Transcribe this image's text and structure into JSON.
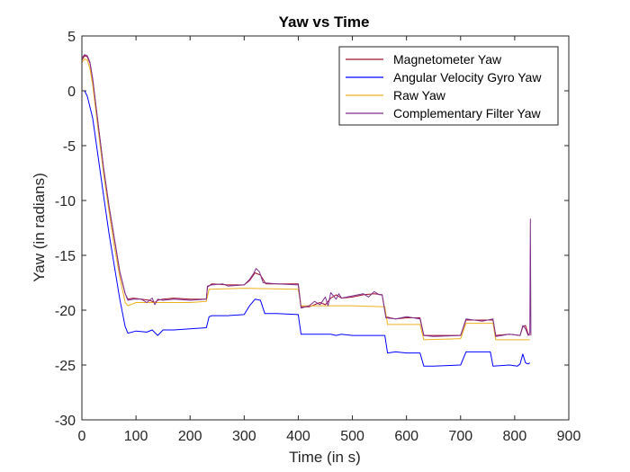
{
  "chart_data": {
    "type": "line",
    "title": "Yaw vs Time",
    "xlabel": "Time (in s)",
    "ylabel": "Yaw (in radians)",
    "xlim": [
      0,
      900
    ],
    "ylim": [
      -30,
      5
    ],
    "xticks": [
      0,
      100,
      200,
      300,
      400,
      500,
      600,
      700,
      800,
      900
    ],
    "yticks": [
      5,
      0,
      -5,
      -10,
      -15,
      -20,
      -25,
      -30
    ],
    "grid": false,
    "legend_position": "top-right",
    "series": [
      {
        "name": "Magnetometer Yaw",
        "color": "#a2142f",
        "points": [
          [
            0,
            2.8
          ],
          [
            5,
            3.2
          ],
          [
            10,
            3.1
          ],
          [
            15,
            2.5
          ],
          [
            20,
            1
          ],
          [
            30,
            -3
          ],
          [
            40,
            -7
          ],
          [
            50,
            -10.5
          ],
          [
            60,
            -13.5
          ],
          [
            70,
            -16.5
          ],
          [
            80,
            -18.5
          ],
          [
            85,
            -19
          ],
          [
            95,
            -18.9
          ],
          [
            110,
            -19
          ],
          [
            125,
            -19.1
          ],
          [
            135,
            -19.3
          ],
          [
            140,
            -19.1
          ],
          [
            150,
            -19
          ],
          [
            170,
            -18.9
          ],
          [
            200,
            -19
          ],
          [
            230,
            -19
          ],
          [
            232,
            -17.9
          ],
          [
            240,
            -17.6
          ],
          [
            270,
            -17.7
          ],
          [
            300,
            -17.7
          ],
          [
            310,
            -17.3
          ],
          [
            320,
            -16.6
          ],
          [
            330,
            -16.8
          ],
          [
            340,
            -17.6
          ],
          [
            360,
            -17.6
          ],
          [
            400,
            -17.6
          ],
          [
            405,
            -19.7
          ],
          [
            420,
            -19.7
          ],
          [
            440,
            -19.3
          ],
          [
            450,
            -19.5
          ],
          [
            460,
            -18.9
          ],
          [
            470,
            -18.6
          ],
          [
            480,
            -18.9
          ],
          [
            500,
            -18.8
          ],
          [
            520,
            -18.6
          ],
          [
            540,
            -18.5
          ],
          [
            555,
            -18.6
          ],
          [
            562,
            -20.6
          ],
          [
            580,
            -20.8
          ],
          [
            600,
            -20.7
          ],
          [
            625,
            -20.7
          ],
          [
            632,
            -22.3
          ],
          [
            650,
            -22.3
          ],
          [
            700,
            -22.3
          ],
          [
            710,
            -20.9
          ],
          [
            740,
            -20.9
          ],
          [
            760,
            -20.9
          ],
          [
            765,
            -22.3
          ],
          [
            790,
            -22.2
          ],
          [
            810,
            -22.3
          ],
          [
            815,
            -21.5
          ],
          [
            820,
            -21.4
          ],
          [
            825,
            -22.2
          ],
          [
            828,
            -22.3
          ]
        ]
      },
      {
        "name": "Angular Velocity Gyro Yaw",
        "color": "#0000ff",
        "points": [
          [
            0,
            0
          ],
          [
            5,
            0
          ],
          [
            10,
            -0.5
          ],
          [
            15,
            -1.5
          ],
          [
            20,
            -2.5
          ],
          [
            30,
            -6
          ],
          [
            40,
            -9.5
          ],
          [
            50,
            -13
          ],
          [
            60,
            -16
          ],
          [
            70,
            -19
          ],
          [
            80,
            -21.5
          ],
          [
            85,
            -22.1
          ],
          [
            100,
            -21.9
          ],
          [
            120,
            -22
          ],
          [
            130,
            -21.8
          ],
          [
            140,
            -22.3
          ],
          [
            150,
            -21.8
          ],
          [
            170,
            -21.8
          ],
          [
            200,
            -21.7
          ],
          [
            230,
            -21.6
          ],
          [
            235,
            -20.6
          ],
          [
            240,
            -20.5
          ],
          [
            270,
            -20.5
          ],
          [
            300,
            -20.4
          ],
          [
            310,
            -19.6
          ],
          [
            320,
            -19
          ],
          [
            330,
            -19.1
          ],
          [
            338,
            -20.3
          ],
          [
            360,
            -20.3
          ],
          [
            400,
            -20.4
          ],
          [
            405,
            -22.2
          ],
          [
            420,
            -22.2
          ],
          [
            460,
            -22.2
          ],
          [
            470,
            -22.3
          ],
          [
            480,
            -22.2
          ],
          [
            500,
            -22.3
          ],
          [
            540,
            -22.3
          ],
          [
            560,
            -22.3
          ],
          [
            565,
            -23.9
          ],
          [
            580,
            -23.8
          ],
          [
            600,
            -23.9
          ],
          [
            625,
            -23.9
          ],
          [
            632,
            -25.1
          ],
          [
            650,
            -25.1
          ],
          [
            700,
            -25
          ],
          [
            710,
            -23.8
          ],
          [
            740,
            -23.8
          ],
          [
            755,
            -23.8
          ],
          [
            760,
            -25.1
          ],
          [
            790,
            -25
          ],
          [
            805,
            -25.1
          ],
          [
            810,
            -24.9
          ],
          [
            815,
            -24
          ],
          [
            820,
            -24.8
          ],
          [
            825,
            -24.9
          ],
          [
            828,
            -24.8
          ]
        ]
      },
      {
        "name": "Raw Yaw",
        "color": "#edb120",
        "points": [
          [
            0,
            2.6
          ],
          [
            5,
            2.9
          ],
          [
            10,
            2.8
          ],
          [
            15,
            2
          ],
          [
            20,
            0.5
          ],
          [
            30,
            -3.5
          ],
          [
            40,
            -7.5
          ],
          [
            50,
            -11
          ],
          [
            60,
            -14.2
          ],
          [
            70,
            -17
          ],
          [
            80,
            -19.3
          ],
          [
            85,
            -19.6
          ],
          [
            100,
            -19.3
          ],
          [
            140,
            -19.3
          ],
          [
            170,
            -19.3
          ],
          [
            200,
            -19.3
          ],
          [
            230,
            -19.2
          ],
          [
            235,
            -18.1
          ],
          [
            300,
            -18
          ],
          [
            400,
            -18.1
          ],
          [
            405,
            -19.6
          ],
          [
            500,
            -19.6
          ],
          [
            560,
            -19.7
          ],
          [
            565,
            -21.3
          ],
          [
            625,
            -21.3
          ],
          [
            632,
            -22.7
          ],
          [
            700,
            -22.6
          ],
          [
            710,
            -21.2
          ],
          [
            760,
            -21.2
          ],
          [
            765,
            -22.7
          ],
          [
            828,
            -22.7
          ]
        ]
      },
      {
        "name": "Complementary Filter Yaw",
        "color": "#7e2f8e",
        "points": [
          [
            0,
            3
          ],
          [
            5,
            3.3
          ],
          [
            10,
            3.2
          ],
          [
            15,
            2.6
          ],
          [
            20,
            1.1
          ],
          [
            30,
            -3
          ],
          [
            40,
            -7
          ],
          [
            50,
            -10.5
          ],
          [
            60,
            -13.5
          ],
          [
            70,
            -16.5
          ],
          [
            80,
            -18.5
          ],
          [
            85,
            -19.1
          ],
          [
            95,
            -19
          ],
          [
            110,
            -19
          ],
          [
            120,
            -19.3
          ],
          [
            130,
            -18.9
          ],
          [
            135,
            -19.5
          ],
          [
            140,
            -19
          ],
          [
            150,
            -19.1
          ],
          [
            170,
            -19
          ],
          [
            200,
            -19.1
          ],
          [
            230,
            -19
          ],
          [
            232,
            -17.8
          ],
          [
            240,
            -17.7
          ],
          [
            260,
            -17.6
          ],
          [
            270,
            -17.8
          ],
          [
            300,
            -17.7
          ],
          [
            310,
            -17.2
          ],
          [
            318,
            -16.6
          ],
          [
            322,
            -16.2
          ],
          [
            328,
            -16.5
          ],
          [
            335,
            -17.5
          ],
          [
            360,
            -17.6
          ],
          [
            400,
            -17.7
          ],
          [
            405,
            -19.8
          ],
          [
            420,
            -19.6
          ],
          [
            430,
            -19.2
          ],
          [
            440,
            -19.5
          ],
          [
            450,
            -18.8
          ],
          [
            455,
            -19.6
          ],
          [
            460,
            -18.4
          ],
          [
            470,
            -19
          ],
          [
            475,
            -18.5
          ],
          [
            480,
            -18.9
          ],
          [
            500,
            -18.7
          ],
          [
            520,
            -18.5
          ],
          [
            530,
            -18.8
          ],
          [
            540,
            -18.3
          ],
          [
            550,
            -18.6
          ],
          [
            555,
            -18.6
          ],
          [
            562,
            -20.7
          ],
          [
            580,
            -20.8
          ],
          [
            600,
            -20.6
          ],
          [
            625,
            -20.8
          ],
          [
            632,
            -22.3
          ],
          [
            650,
            -22.4
          ],
          [
            700,
            -22.3
          ],
          [
            710,
            -20.8
          ],
          [
            740,
            -21
          ],
          [
            760,
            -20.8
          ],
          [
            765,
            -22.4
          ],
          [
            790,
            -22.2
          ],
          [
            810,
            -22.3
          ],
          [
            815,
            -21.4
          ],
          [
            820,
            -21.7
          ],
          [
            825,
            -22.3
          ],
          [
            828,
            -22.1
          ],
          [
            829,
            -11.7
          ],
          [
            830,
            -22.3
          ]
        ]
      }
    ]
  }
}
